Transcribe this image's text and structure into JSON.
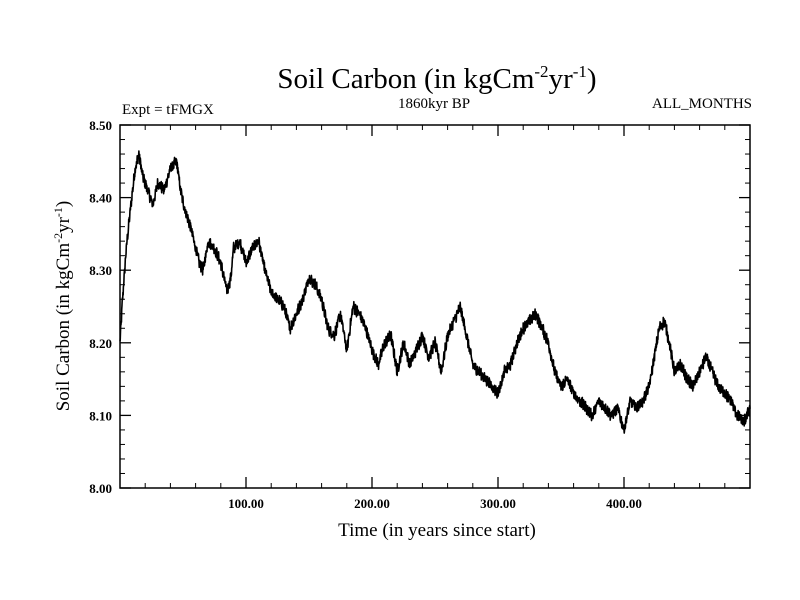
{
  "chart_data": {
    "type": "line",
    "title": {
      "prefix": "Soil Carbon (in kgCm",
      "sup1": "-2",
      "mid": "yr",
      "sup2": "-1",
      "suffix": ")"
    },
    "subtitle_left": "Expt = tFMGX",
    "subtitle_center": "1860kyr BP",
    "subtitle_right": "ALL_MONTHS",
    "xlabel": "Time (in years since start)",
    "ylabel": {
      "prefix": "Soil Carbon (in kgCm",
      "sup1": "-2",
      "mid": "yr",
      "sup2": "-1",
      "suffix": ")"
    },
    "xlim": [
      0,
      500
    ],
    "ylim": [
      8.0,
      8.5
    ],
    "x_ticks": [
      {
        "value": 100,
        "label": "100.00"
      },
      {
        "value": 200,
        "label": "200.00"
      },
      {
        "value": 300,
        "label": "300.00"
      },
      {
        "value": 400,
        "label": "400.00"
      }
    ],
    "y_ticks": [
      {
        "value": 8.0,
        "label": "8.00"
      },
      {
        "value": 8.1,
        "label": "8.10"
      },
      {
        "value": 8.2,
        "label": "8.20"
      },
      {
        "value": 8.3,
        "label": "8.30"
      },
      {
        "value": 8.4,
        "label": "8.40"
      },
      {
        "value": 8.5,
        "label": "8.50"
      }
    ],
    "series": [
      {
        "name": "Soil Carbon",
        "color": "#000000",
        "x": [
          0,
          2,
          5,
          8,
          12,
          15,
          18,
          22,
          26,
          30,
          35,
          40,
          45,
          48,
          52,
          56,
          60,
          63,
          66,
          70,
          75,
          80,
          85,
          88,
          90,
          95,
          100,
          105,
          110,
          115,
          120,
          125,
          130,
          135,
          140,
          145,
          150,
          155,
          160,
          165,
          170,
          175,
          180,
          185,
          190,
          195,
          200,
          205,
          210,
          215,
          220,
          225,
          230,
          235,
          240,
          245,
          250,
          255,
          260,
          265,
          270,
          275,
          280,
          285,
          290,
          295,
          300,
          305,
          310,
          315,
          320,
          325,
          330,
          335,
          340,
          345,
          350,
          355,
          360,
          365,
          370,
          375,
          380,
          385,
          390,
          395,
          400,
          405,
          410,
          415,
          420,
          425,
          428,
          432,
          436,
          440,
          445,
          450,
          455,
          460,
          465,
          470,
          475,
          480,
          485,
          490,
          495,
          500
        ],
        "values": [
          8.2,
          8.26,
          8.33,
          8.38,
          8.44,
          8.46,
          8.43,
          8.41,
          8.39,
          8.42,
          8.41,
          8.44,
          8.45,
          8.41,
          8.38,
          8.36,
          8.33,
          8.31,
          8.3,
          8.34,
          8.33,
          8.31,
          8.27,
          8.29,
          8.33,
          8.34,
          8.31,
          8.33,
          8.34,
          8.3,
          8.27,
          8.26,
          8.25,
          8.22,
          8.24,
          8.26,
          8.29,
          8.28,
          8.26,
          8.22,
          8.21,
          8.24,
          8.19,
          8.25,
          8.24,
          8.22,
          8.19,
          8.17,
          8.2,
          8.21,
          8.16,
          8.2,
          8.17,
          8.19,
          8.21,
          8.18,
          8.2,
          8.16,
          8.21,
          8.23,
          8.25,
          8.21,
          8.17,
          8.16,
          8.15,
          8.14,
          8.13,
          8.16,
          8.17,
          8.2,
          8.22,
          8.23,
          8.24,
          8.22,
          8.2,
          8.16,
          8.14,
          8.15,
          8.13,
          8.12,
          8.11,
          8.1,
          8.12,
          8.11,
          8.1,
          8.11,
          8.08,
          8.12,
          8.11,
          8.12,
          8.14,
          8.19,
          8.22,
          8.23,
          8.2,
          8.16,
          8.17,
          8.15,
          8.14,
          8.16,
          8.18,
          8.16,
          8.14,
          8.13,
          8.12,
          8.1,
          8.09,
          8.11
        ]
      }
    ]
  }
}
